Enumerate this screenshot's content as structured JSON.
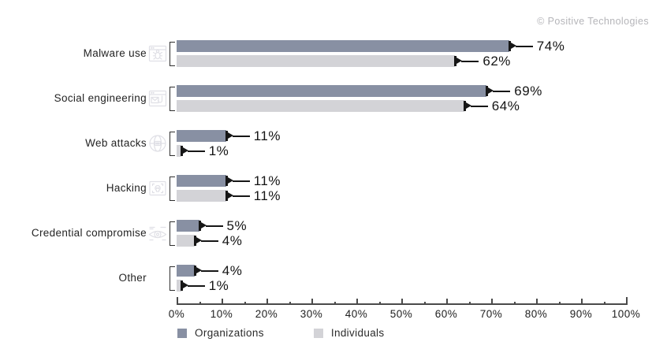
{
  "copyright": "© Positive Technologies",
  "colors": {
    "organizations": "#8890a3",
    "individuals": "#d3d3d7",
    "axis": "#4a4a4a",
    "marker": "#161616",
    "label_text": "#242424",
    "copyright": "#b5b5b9",
    "icon": "#e0e0e6"
  },
  "chart_data": {
    "type": "bar",
    "orientation": "horizontal",
    "title": "",
    "categories": [
      "Malware use",
      "Social engineering",
      "Web attacks",
      "Hacking",
      "Credential compromise",
      "Other"
    ],
    "series": [
      {
        "name": "Organizations",
        "values": [
          74,
          69,
          11,
          11,
          5,
          4
        ],
        "labels": [
          "74%",
          "69%",
          "11%",
          "11%",
          "5%",
          "4%"
        ]
      },
      {
        "name": "Individuals",
        "values": [
          62,
          64,
          1,
          11,
          4,
          1
        ],
        "labels": [
          "62%",
          "64%",
          "1%",
          "11%",
          "4%",
          "1%"
        ]
      }
    ],
    "xlim": [
      0,
      100
    ],
    "x_ticks": [
      "0%",
      "10%",
      "20%",
      "30%",
      "40%",
      "50%",
      "60%",
      "70%",
      "80%",
      "90%",
      "100%"
    ],
    "minor_tick_step_percent": 5,
    "grid": false,
    "legend": [
      "Organizations",
      "Individuals"
    ],
    "legend_position": "bottom"
  },
  "icons": [
    "malware-window-bug-icon",
    "social-engineering-mail-hook-icon",
    "web-globe-icon",
    "hacking-skull-window-icon",
    "credential-eye-icon",
    null
  ]
}
